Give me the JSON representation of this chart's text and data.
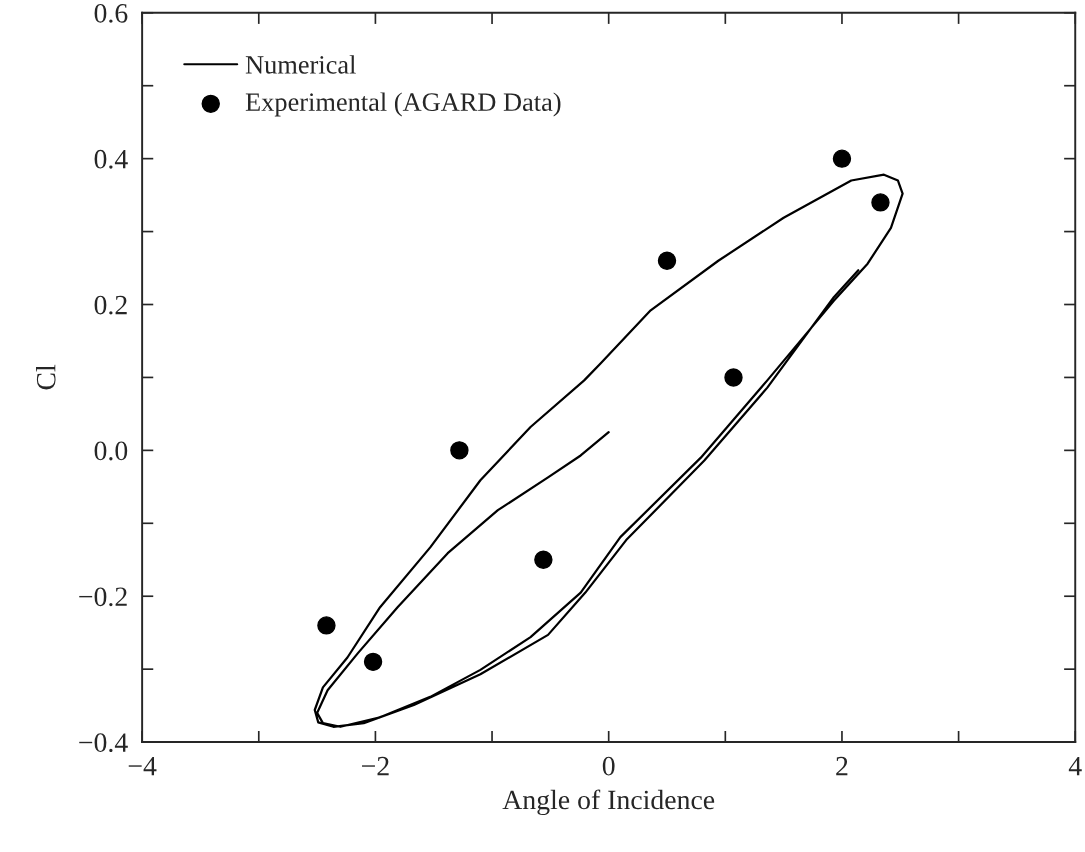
{
  "chart_data": {
    "type": "line",
    "xlabel": "Angle of Incidence",
    "ylabel": "Cl",
    "xlim": [
      -4,
      4
    ],
    "ylim": [
      -0.4,
      0.6
    ],
    "xticks": [
      {
        "value": -4,
        "label": "−4"
      },
      {
        "value": -3,
        "label": null
      },
      {
        "value": -2,
        "label": "−2"
      },
      {
        "value": -1,
        "label": null
      },
      {
        "value": 0,
        "label": "0"
      },
      {
        "value": 1,
        "label": null
      },
      {
        "value": 2,
        "label": "2"
      },
      {
        "value": 3,
        "label": null
      },
      {
        "value": 4,
        "label": "4"
      }
    ],
    "yticks": [
      {
        "value": -0.4,
        "label": "−0.4"
      },
      {
        "value": -0.3,
        "label": null
      },
      {
        "value": -0.2,
        "label": "−0.2"
      },
      {
        "value": -0.1,
        "label": null
      },
      {
        "value": 0,
        "label": "0.0"
      },
      {
        "value": 0.1,
        "label": null
      },
      {
        "value": 0.2,
        "label": "0.2"
      },
      {
        "value": 0.3,
        "label": null
      },
      {
        "value": 0.4,
        "label": "0.4"
      },
      {
        "value": 0.5,
        "label": null
      },
      {
        "value": 0.6,
        "label": "0.6"
      }
    ],
    "grid": false,
    "legend": "top left",
    "series": [
      {
        "name": "Numerical",
        "color": "#000000",
        "marker": "none",
        "line_style": "solid",
        "x": [
          0.0,
          -0.24,
          -0.52,
          -0.95,
          -1.38,
          -1.81,
          -2.15,
          -2.41,
          -2.5,
          -2.45,
          -2.3,
          -1.96,
          -1.53,
          -1.1,
          -0.67,
          -0.24,
          0.1,
          0.79,
          1.36,
          1.93,
          2.22,
          2.42,
          2.52,
          2.48,
          2.36,
          2.08,
          1.5,
          0.94,
          0.36,
          -0.07,
          -0.21,
          -0.67,
          -1.1,
          -1.53,
          -1.96,
          -2.24,
          -2.45,
          -2.52,
          -2.49,
          -2.36,
          -2.1,
          -1.67,
          -1.1,
          -0.52,
          -0.2,
          0.15,
          0.82,
          1.36,
          1.93,
          2.14
        ],
        "values": [
          0.025,
          -0.007,
          -0.037,
          -0.082,
          -0.141,
          -0.215,
          -0.278,
          -0.329,
          -0.36,
          -0.374,
          -0.379,
          -0.366,
          -0.338,
          -0.301,
          -0.256,
          -0.195,
          -0.119,
          -0.01,
          0.096,
          0.205,
          0.256,
          0.305,
          0.352,
          0.37,
          0.378,
          0.37,
          0.319,
          0.26,
          0.192,
          0.119,
          0.096,
          0.032,
          -0.041,
          -0.133,
          -0.215,
          -0.284,
          -0.325,
          -0.356,
          -0.373,
          -0.379,
          -0.374,
          -0.349,
          -0.307,
          -0.253,
          -0.195,
          -0.123,
          -0.014,
          0.086,
          0.21,
          0.247
        ]
      },
      {
        "name": "Experimental (AGARD Data)",
        "type": "scatter",
        "color": "#000000",
        "marker": "circle",
        "x": [
          -2.42,
          -2.02,
          -1.28,
          -0.56,
          0.5,
          1.07,
          2.0,
          2.33
        ],
        "values": [
          -0.24,
          -0.29,
          0.0,
          -0.15,
          0.26,
          0.1,
          0.4,
          0.34
        ]
      }
    ]
  }
}
